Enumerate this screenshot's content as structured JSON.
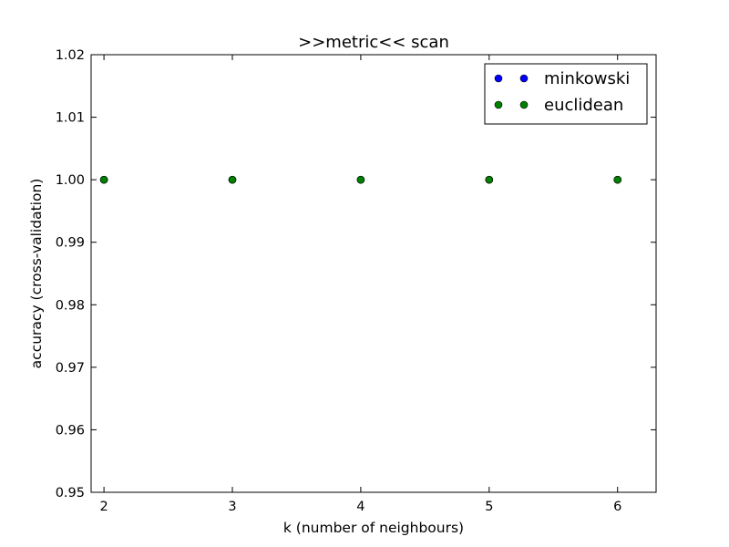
{
  "chart_data": {
    "type": "scatter",
    "title": ">>metric<< scan",
    "xlabel": "k (number of neighbours)",
    "ylabel": "accuracy (cross-validation)",
    "xlim": [
      1.9,
      6.3
    ],
    "ylim": [
      0.95,
      1.02
    ],
    "xticks": [
      2,
      3,
      4,
      5,
      6
    ],
    "xtick_labels": [
      "2",
      "3",
      "4",
      "5",
      "6"
    ],
    "yticks": [
      0.95,
      0.96,
      0.97,
      0.98,
      0.99,
      1.0,
      1.01,
      1.02
    ],
    "ytick_labels": [
      "0.95",
      "0.96",
      "0.97",
      "0.98",
      "0.99",
      "1.00",
      "1.01",
      "1.02"
    ],
    "grid": false,
    "legend_position": "top-right",
    "series": [
      {
        "name": "minkowski",
        "color": "#0000ff",
        "x": [
          2,
          3,
          4,
          5,
          6
        ],
        "y": [
          1.0,
          1.0,
          1.0,
          1.0,
          1.0
        ]
      },
      {
        "name": "euclidean",
        "color": "#008000",
        "x": [
          2,
          3,
          4,
          5,
          6
        ],
        "y": [
          1.0,
          1.0,
          1.0,
          1.0,
          1.0
        ]
      }
    ]
  }
}
